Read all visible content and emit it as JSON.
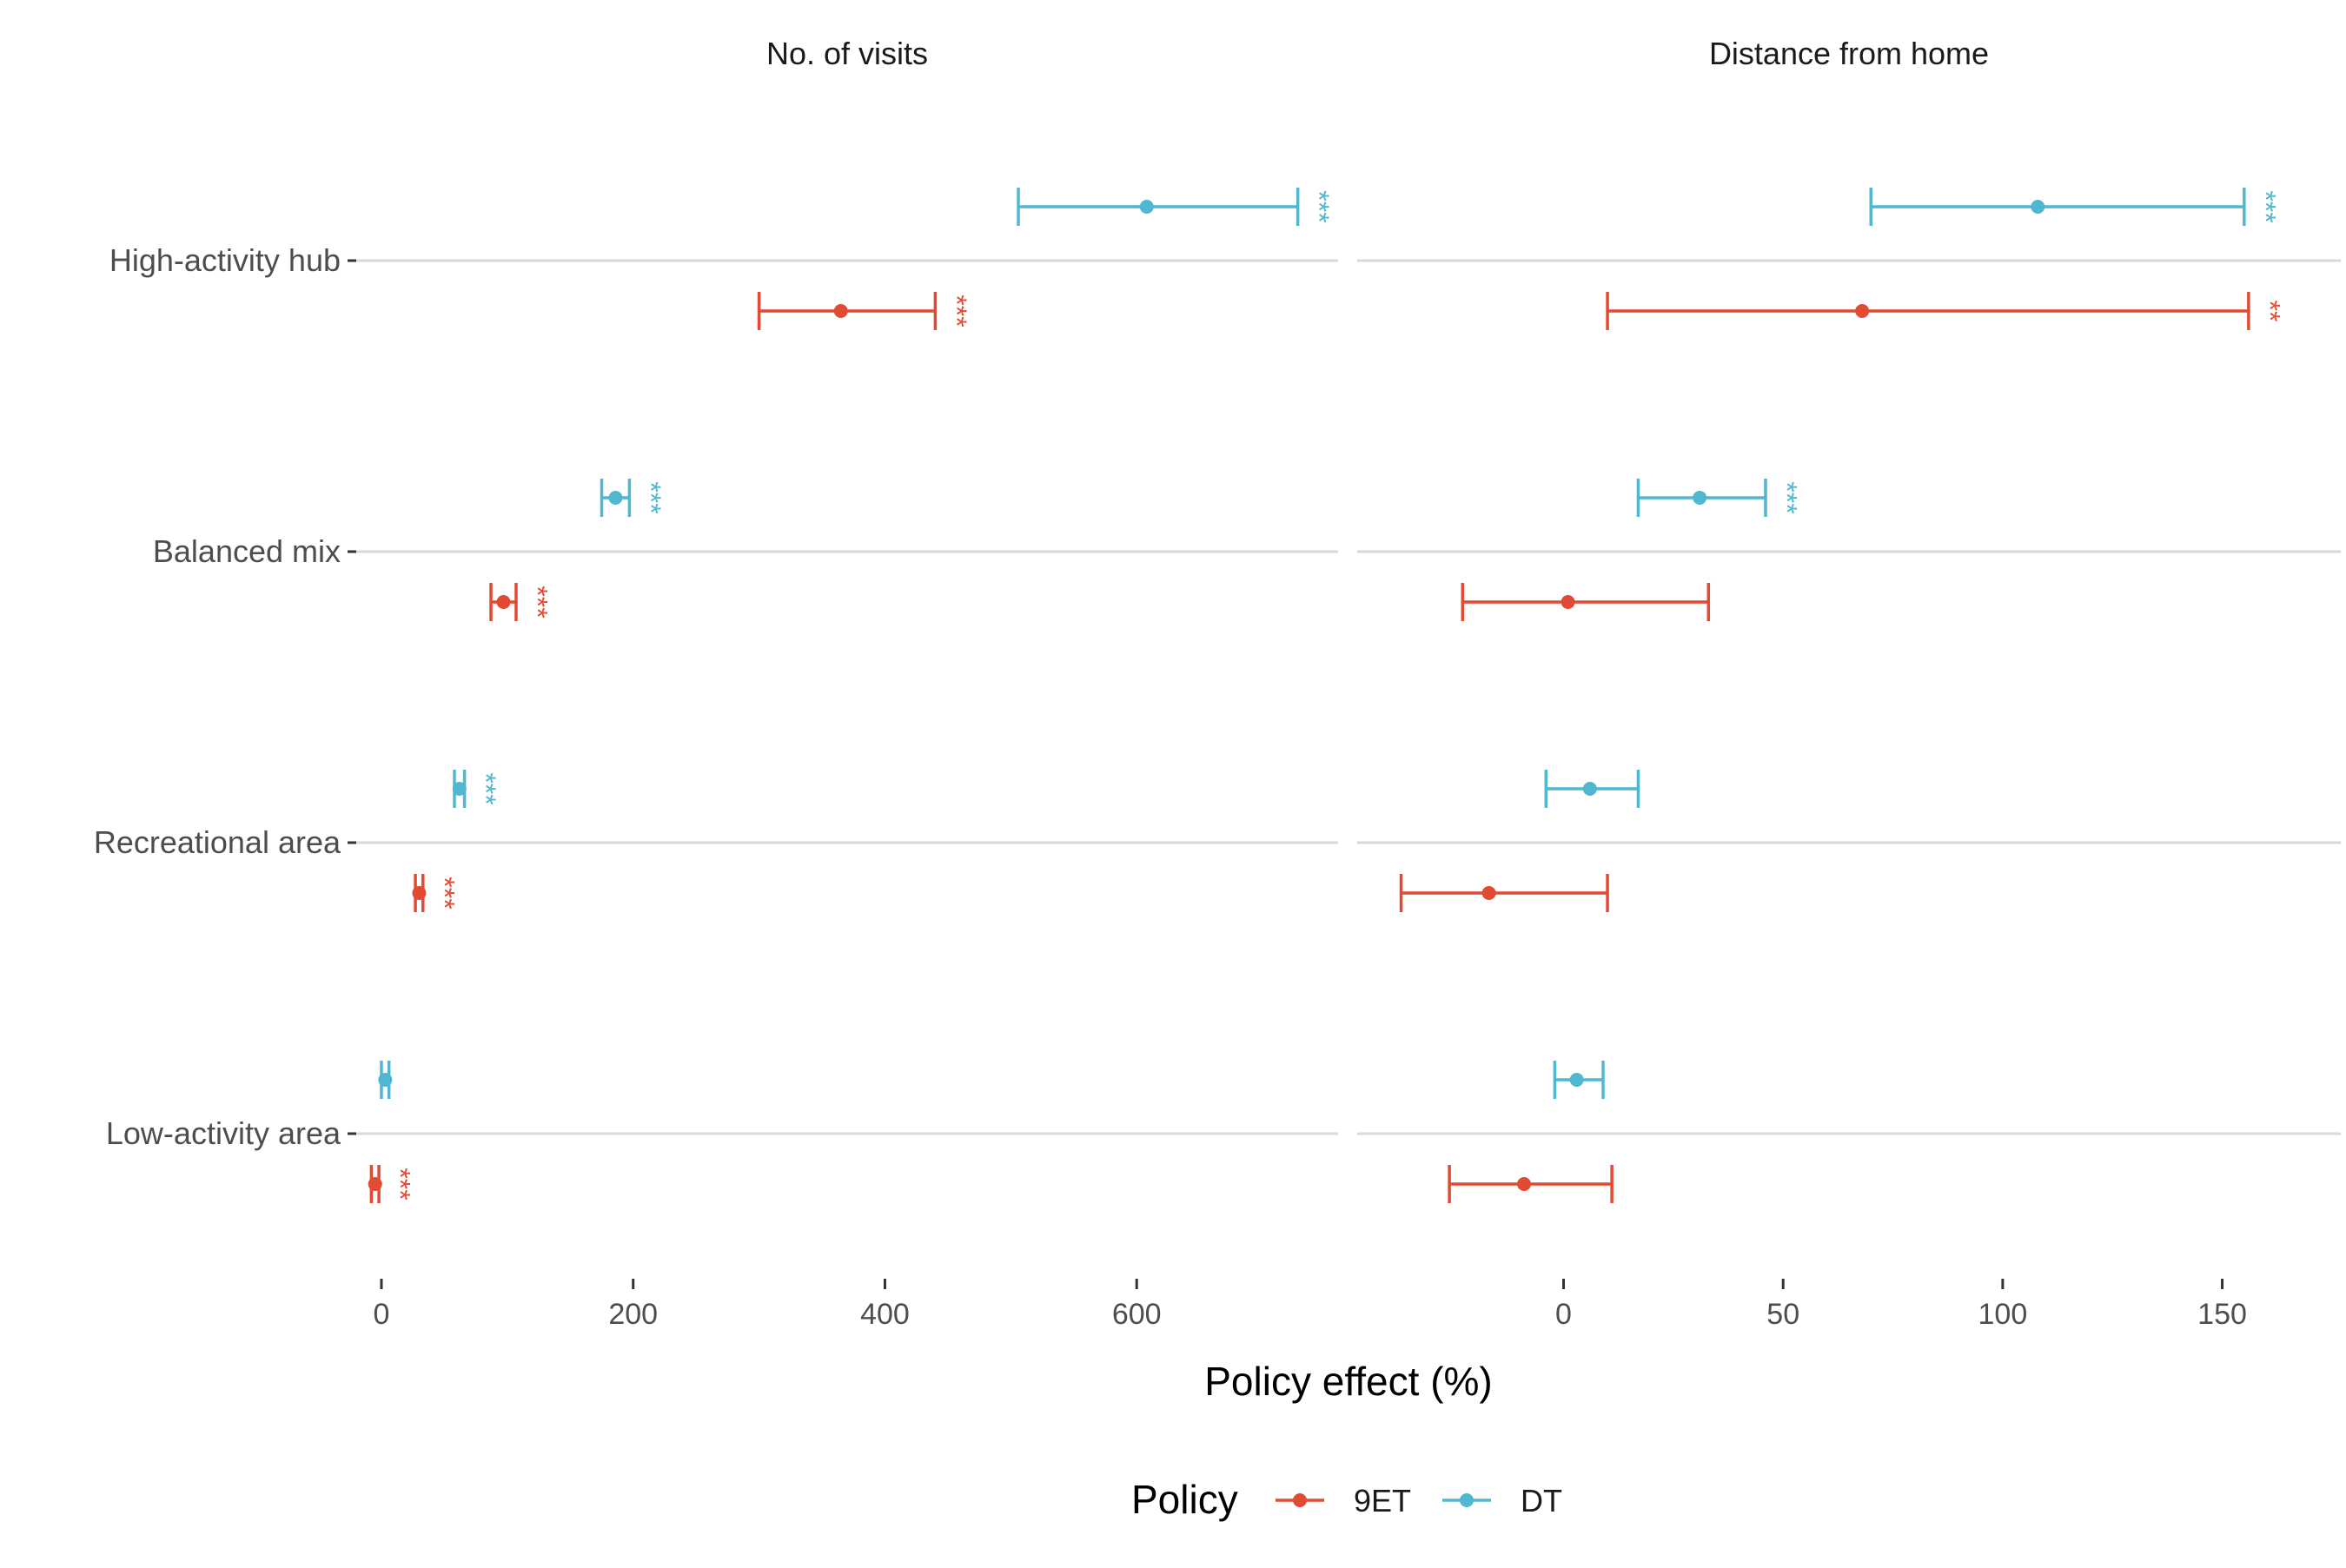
{
  "chart_data": {
    "type": "errorbar",
    "xlabel": "Policy effect (%)",
    "categories": [
      "High-activity hub",
      "Balanced mix",
      "Recreational area",
      "Low-activity area"
    ],
    "legend": {
      "title": "Policy",
      "position": "bottom",
      "items": [
        {
          "name": "9ET",
          "color": "#E24A33"
        },
        {
          "name": "DT",
          "color": "#4FB7CF"
        }
      ]
    },
    "panels": [
      {
        "title": "No. of visits",
        "xlim": [
          -20,
          760
        ],
        "xticks": [
          0,
          200,
          400,
          600
        ],
        "series": [
          {
            "name": "DT",
            "color": "#4FB7CF",
            "points": [
              {
                "category": "High-activity hub",
                "estimate": 608,
                "lower": 506,
                "upper": 728,
                "signif": "***"
              },
              {
                "category": "Balanced mix",
                "estimate": 186,
                "lower": 175,
                "upper": 197,
                "signif": "***"
              },
              {
                "category": "Recreational area",
                "estimate": 62,
                "lower": 58,
                "upper": 66,
                "signif": "***"
              },
              {
                "category": "Low-activity area",
                "estimate": 3,
                "lower": 0,
                "upper": 6,
                "signif": ""
              }
            ]
          },
          {
            "name": "9ET",
            "color": "#E24A33",
            "points": [
              {
                "category": "High-activity hub",
                "estimate": 365,
                "lower": 300,
                "upper": 440,
                "signif": "***"
              },
              {
                "category": "Balanced mix",
                "estimate": 97,
                "lower": 87,
                "upper": 107,
                "signif": "***"
              },
              {
                "category": "Recreational area",
                "estimate": 30,
                "lower": 27,
                "upper": 33,
                "signif": "***"
              },
              {
                "category": "Low-activity area",
                "estimate": -5,
                "lower": -8,
                "upper": -2,
                "signif": "***"
              }
            ]
          }
        ]
      },
      {
        "title": "Distance from home",
        "xlim": [
          -47,
          177
        ],
        "xticks": [
          0,
          50,
          100,
          150
        ],
        "series": [
          {
            "name": "DT",
            "color": "#4FB7CF",
            "points": [
              {
                "category": "High-activity hub",
                "estimate": 108,
                "lower": 70,
                "upper": 155,
                "signif": "***"
              },
              {
                "category": "Balanced mix",
                "estimate": 31,
                "lower": 17,
                "upper": 46,
                "signif": "***"
              },
              {
                "category": "Recreational area",
                "estimate": 6,
                "lower": -4,
                "upper": 17,
                "signif": ""
              },
              {
                "category": "Low-activity area",
                "estimate": 3,
                "lower": -2,
                "upper": 9,
                "signif": ""
              }
            ]
          },
          {
            "name": "9ET",
            "color": "#E24A33",
            "points": [
              {
                "category": "High-activity hub",
                "estimate": 68,
                "lower": 10,
                "upper": 156,
                "signif": "**"
              },
              {
                "category": "Balanced mix",
                "estimate": 1,
                "lower": -23,
                "upper": 33,
                "signif": ""
              },
              {
                "category": "Recreational area",
                "estimate": -17,
                "lower": -37,
                "upper": 10,
                "signif": ""
              },
              {
                "category": "Low-activity area",
                "estimate": -9,
                "lower": -26,
                "upper": 11,
                "signif": ""
              }
            ]
          }
        ]
      }
    ]
  }
}
